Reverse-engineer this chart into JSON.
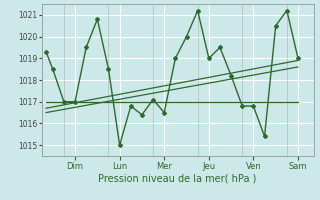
{
  "xlabel": "Pression niveau de la mer( hPa )",
  "bg_color": "#cce8e8",
  "grid_color": "#ffffff",
  "line_color": "#2d6a2d",
  "ylim": [
    1014.5,
    1021.5
  ],
  "yticks": [
    1015,
    1016,
    1017,
    1018,
    1019,
    1020,
    1021
  ],
  "xlim": [
    0,
    14
  ],
  "x_tick_positions": [
    1.5,
    3.5,
    5.5,
    7.5,
    9.5,
    11.5
  ],
  "x_tick_labels": [
    "Dim",
    "Lun",
    "Mer",
    "Jeu",
    "Ven",
    "Sam"
  ],
  "series1_x": [
    0.2,
    0.5,
    1.0,
    1.5,
    2.0,
    2.5,
    3.0,
    3.5,
    4.0,
    4.5,
    5.0,
    5.5,
    6.0,
    6.5,
    7.0,
    7.5,
    8.0,
    8.5,
    9.0,
    9.5,
    10.0,
    10.5,
    11.0,
    11.5
  ],
  "series1_y": [
    1019.3,
    1018.5,
    1017.0,
    1017.0,
    1019.5,
    1020.8,
    1018.5,
    1015.0,
    1016.8,
    1016.4,
    1017.1,
    1016.5,
    1019.0,
    1020.0,
    1021.2,
    1019.0,
    1019.5,
    1018.2,
    1016.8,
    1016.8,
    1015.4,
    1020.5,
    1021.2,
    1019.0
  ],
  "trend1_x": [
    0.2,
    11.5
  ],
  "trend1_y": [
    1016.7,
    1018.9
  ],
  "trend2_x": [
    0.2,
    11.5
  ],
  "trend2_y": [
    1016.5,
    1018.6
  ],
  "trend3_x": [
    0.2,
    11.5
  ],
  "trend3_y": [
    1017.0,
    1017.0
  ]
}
